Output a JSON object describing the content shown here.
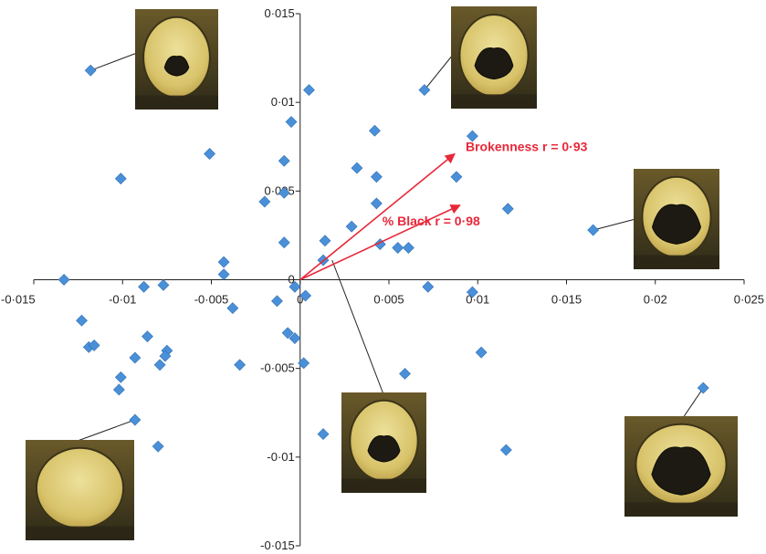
{
  "chart_data": {
    "type": "scatter",
    "xlim": [
      -0.015,
      0.025
    ],
    "ylim": [
      -0.015,
      0.015
    ],
    "x_ticks": [
      "-0·015",
      "-0·01",
      "-0·005",
      "0",
      "0·005",
      "0·01",
      "0·015",
      "0·02",
      "0·025"
    ],
    "y_ticks": [
      "-0·015",
      "-0·01",
      "-0·005",
      "0",
      "0·005",
      "0·01",
      "0·015"
    ],
    "grid": false,
    "marker_color": "#4a90d9",
    "series": [
      {
        "x": [
          -0.0118,
          -0.0101,
          -0.0051,
          -0.0133,
          -0.0088,
          -0.0077,
          -0.0043,
          -0.0043,
          -0.0123,
          -0.0119,
          -0.0116,
          -0.0086,
          -0.0093,
          -0.0101,
          -0.0102,
          -0.0079,
          -0.0075,
          -0.0076,
          -0.0038,
          -0.0034,
          -0.0093,
          -0.008,
          0.0005,
          -0.0005,
          -0.0009,
          -0.002,
          -0.0009,
          -0.0009,
          -0.0013,
          -0.0003,
          0.0003,
          -0.0007,
          -0.0003,
          0.0002,
          0.0014,
          0.0013,
          0.0029,
          0.0032,
          0.0042,
          0.0043,
          0.0043,
          0.0045,
          0.0055,
          0.0061,
          0.0072,
          0.007,
          0.0088,
          0.0097,
          0.0097,
          0.0117,
          0.0165,
          0.0102,
          0.0059,
          0.0116,
          0.0227,
          0.0013
        ],
        "y": [
          0.0118,
          0.0057,
          0.0071,
          0.0,
          -0.0004,
          -0.0003,
          0.001,
          0.0003,
          -0.0023,
          -0.0038,
          -0.0037,
          -0.0032,
          -0.0044,
          -0.0055,
          -0.0062,
          -0.0048,
          -0.004,
          -0.0043,
          -0.0016,
          -0.0048,
          -0.0079,
          -0.0094,
          0.0107,
          0.0089,
          0.0067,
          0.0044,
          0.0049,
          0.0021,
          -0.0012,
          -0.0004,
          -0.0009,
          -0.003,
          -0.0033,
          -0.0047,
          0.0022,
          0.0011,
          0.003,
          0.0063,
          0.0084,
          0.0058,
          0.0043,
          0.002,
          0.0018,
          0.0018,
          -0.0004,
          0.0107,
          0.0058,
          0.0081,
          -0.0007,
          0.004,
          0.0028,
          -0.0041,
          -0.0053,
          -0.0096,
          -0.0061,
          -0.0087
        ]
      }
    ],
    "vectors": [
      {
        "label": "Brokenness r = 0·93",
        "x": 0.0087,
        "y": 0.0071,
        "color": "#e8283a"
      },
      {
        "label": "% Black r = 0·98",
        "x": 0.009,
        "y": 0.0042,
        "color": "#e8283a"
      }
    ],
    "annotations": [
      {
        "name": "inset-photo-top-left",
        "point": [
          -0.0118,
          0.0118
        ],
        "shape": "top-left",
        "black": 0.12
      },
      {
        "name": "inset-photo-top-right",
        "point": [
          0.007,
          0.0107
        ],
        "shape": "top-right",
        "black": 0.28
      },
      {
        "name": "inset-photo-right",
        "point": [
          0.0165,
          0.0028
        ],
        "shape": "right",
        "black": 0.45
      },
      {
        "name": "inset-photo-center",
        "point": [
          0.0018,
          0.0011
        ],
        "shape": "center",
        "black": 0.2
      },
      {
        "name": "inset-photo-bottom-left",
        "point": [
          -0.0093,
          -0.0079
        ],
        "shape": "bottom-left",
        "black": 0.0
      },
      {
        "name": "inset-photo-bottom-right",
        "point": [
          0.0227,
          -0.0061
        ],
        "shape": "bottom-right",
        "black": 0.38
      }
    ]
  }
}
